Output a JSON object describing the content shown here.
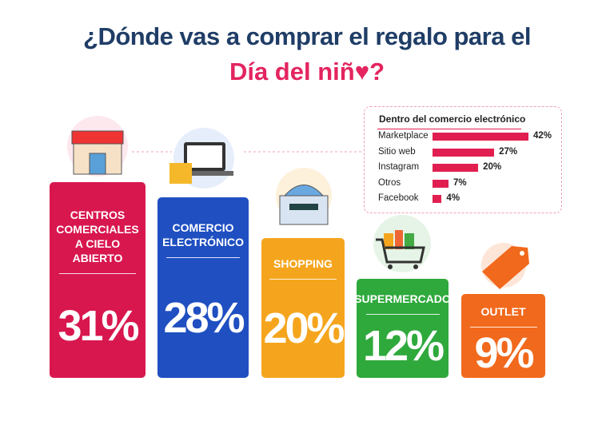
{
  "title": [
    "¿Dónde vas a comprar el regalo para el",
    "Día del niñ♥?"
  ],
  "chart_data": [
    {
      "type": "bar",
      "categories": [
        "CENTROS COMERCIALES A CIELO ABIERTO",
        "COMERCIO ELECTRÓNICO",
        "SHOPPING",
        "SUPERMERCADO",
        "OUTLET"
      ],
      "values": [
        31,
        28,
        20,
        12,
        9
      ],
      "value_labels": [
        "31%",
        "28%",
        "20%",
        "12%",
        "9%"
      ],
      "colors": [
        "#d8174f",
        "#1f4fc1",
        "#f5a51d",
        "#2fa93c",
        "#f1691c"
      ]
    },
    {
      "type": "hbar",
      "title": "Dentro del comercio electrónico",
      "categories": [
        "Marketplace",
        "Sitio web",
        "Instagram",
        "Otros",
        "Facebook"
      ],
      "values": [
        42,
        27,
        20,
        7,
        4
      ],
      "value_labels": [
        "42%",
        "27%",
        "20%",
        "7%",
        "4%"
      ],
      "color": "#e01f50"
    }
  ]
}
